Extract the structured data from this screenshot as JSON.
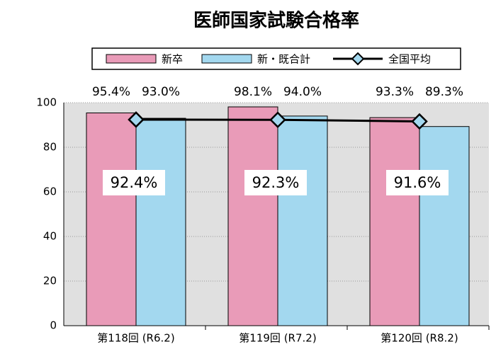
{
  "chart_data": {
    "type": "bar",
    "title": "医師国家試験合格率",
    "categories": [
      "第118回 (R6.2)",
      "第119回 (R7.2)",
      "第120回 (R8.2)"
    ],
    "series": [
      {
        "name": "新卒",
        "color": "#e99bb8",
        "values": [
          95.4,
          98.1,
          93.3
        ],
        "value_labels": [
          "95.4%",
          "98.1%",
          "93.3%"
        ]
      },
      {
        "name": "新・既合計",
        "color": "#a3d8ef",
        "values": [
          93.0,
          94.0,
          89.3
        ],
        "value_labels": [
          "93.0%",
          "94.0%",
          "89.3%"
        ]
      },
      {
        "name": "全国平均",
        "type": "line",
        "color": "#000000",
        "marker_color": "#a3d8ef",
        "values": [
          92.4,
          92.3,
          91.6
        ],
        "value_labels": [
          "92.4%",
          "92.3%",
          "91.6%"
        ]
      }
    ],
    "ylim": [
      0,
      100
    ],
    "yticks": [
      0,
      20,
      40,
      60,
      80,
      100
    ],
    "grid": true
  }
}
